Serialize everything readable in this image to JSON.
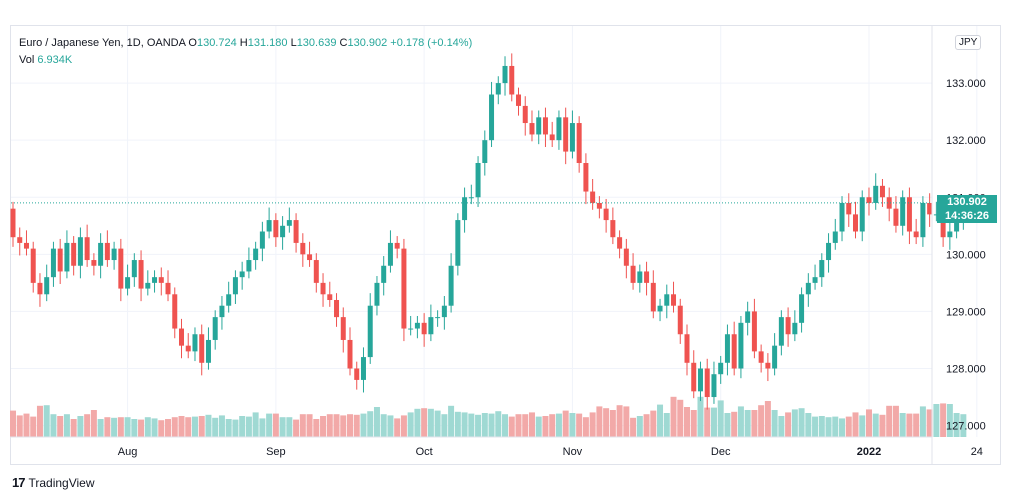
{
  "legend": {
    "symbol": "Euro / Japanese Yen, 1D, OANDA",
    "o_label": "O",
    "o_value": "130.724",
    "h_label": "H",
    "h_value": "131.180",
    "l_label": "L",
    "l_value": "130.639",
    "c_label": "C",
    "c_value": "130.902",
    "change": "+0.178 (+0.14%)",
    "vol_label": "Vol",
    "vol_value": "6.934K"
  },
  "currency_badge": "JPY",
  "last_price": {
    "price": "130.902",
    "countdown": "14:36:26"
  },
  "footer": {
    "logo": "17",
    "brand": "TradingView"
  },
  "colors": {
    "up": "#26a69a",
    "down": "#ef5350",
    "up_vol": "#9fd9d3",
    "down_vol": "#f2a9a8"
  },
  "chart_data": {
    "type": "candlestick",
    "y_ticks": [
      "133.000",
      "132.000",
      "131.000",
      "130.000",
      "129.000",
      "128.000",
      "127.000"
    ],
    "y_tick_values": [
      133,
      132,
      131,
      130,
      129,
      128,
      127
    ],
    "ylim": [
      126.8,
      134.0
    ],
    "x_labels": [
      {
        "label": "Aug",
        "index": 17
      },
      {
        "label": "Sep",
        "index": 39
      },
      {
        "label": "Oct",
        "index": 61
      },
      {
        "label": "Nov",
        "index": 83
      },
      {
        "label": "Dec",
        "index": 105
      },
      {
        "label": "2022",
        "index": 127
      },
      {
        "label": "24",
        "index": 143
      }
    ],
    "closes": [
      130.3,
      130.2,
      130.1,
      129.5,
      129.3,
      129.6,
      130.1,
      129.7,
      130.2,
      129.8,
      130.3,
      129.9,
      129.8,
      130.2,
      129.9,
      130.1,
      129.4,
      129.6,
      129.9,
      129.4,
      129.5,
      129.6,
      129.5,
      129.3,
      128.7,
      128.4,
      128.3,
      128.6,
      128.1,
      128.5,
      128.9,
      129.1,
      129.3,
      129.6,
      129.7,
      129.9,
      130.1,
      130.4,
      130.6,
      130.3,
      130.5,
      130.6,
      130.2,
      130.0,
      129.9,
      129.5,
      129.3,
      129.2,
      128.9,
      128.5,
      128.0,
      127.8,
      128.2,
      129.1,
      129.5,
      129.8,
      130.2,
      130.1,
      128.7,
      128.7,
      128.8,
      128.6,
      128.9,
      128.9,
      129.1,
      129.8,
      130.6,
      131.0,
      131.0,
      131.6,
      132.0,
      132.8,
      133.0,
      133.3,
      132.8,
      132.6,
      132.3,
      132.1,
      132.4,
      132.1,
      132.0,
      132.4,
      131.8,
      132.3,
      131.6,
      131.1,
      130.9,
      130.8,
      130.6,
      130.3,
      130.1,
      129.8,
      129.5,
      129.7,
      129.5,
      129.0,
      129.1,
      129.3,
      129.1,
      128.6,
      128.1,
      127.6,
      128.0,
      127.5,
      127.9,
      128.1,
      128.6,
      128.0,
      128.8,
      129.0,
      128.3,
      128.1,
      128.0,
      128.4,
      128.9,
      128.6,
      128.8,
      129.3,
      129.5,
      129.6,
      129.9,
      130.2,
      130.4,
      130.9,
      130.7,
      130.4,
      131.0,
      130.9,
      131.2,
      131.0,
      130.8,
      130.5,
      131.0,
      130.4,
      130.3,
      130.9,
      130.7,
      130.7,
      130.3,
      130.4,
      130.6,
      130.9
    ],
    "volumes": [
      0.44,
      0.36,
      0.39,
      0.34,
      0.52,
      0.53,
      0.38,
      0.35,
      0.38,
      0.3,
      0.35,
      0.38,
      0.45,
      0.3,
      0.33,
      0.32,
      0.33,
      0.33,
      0.3,
      0.29,
      0.33,
      0.31,
      0.28,
      0.3,
      0.33,
      0.35,
      0.33,
      0.34,
      0.35,
      0.37,
      0.32,
      0.36,
      0.3,
      0.29,
      0.35,
      0.34,
      0.41,
      0.31,
      0.39,
      0.39,
      0.33,
      0.33,
      0.29,
      0.38,
      0.38,
      0.3,
      0.35,
      0.38,
      0.38,
      0.36,
      0.38,
      0.37,
      0.39,
      0.43,
      0.5,
      0.38,
      0.36,
      0.31,
      0.36,
      0.41,
      0.47,
      0.48,
      0.47,
      0.44,
      0.38,
      0.52,
      0.42,
      0.41,
      0.39,
      0.37,
      0.4,
      0.39,
      0.43,
      0.38,
      0.34,
      0.38,
      0.38,
      0.41,
      0.34,
      0.35,
      0.38,
      0.39,
      0.44,
      0.4,
      0.39,
      0.33,
      0.41,
      0.51,
      0.48,
      0.45,
      0.53,
      0.51,
      0.32,
      0.35,
      0.38,
      0.44,
      0.54,
      0.4,
      0.67,
      0.62,
      0.5,
      0.45,
      0.67,
      0.49,
      0.49,
      0.61,
      0.4,
      0.42,
      0.51,
      0.45,
      0.45,
      0.53,
      0.6,
      0.45,
      0.35,
      0.41,
      0.46,
      0.48,
      0.4,
      0.34,
      0.35,
      0.33,
      0.34,
      0.31,
      0.34,
      0.41,
      0.36,
      0.46,
      0.39,
      0.37,
      0.52,
      0.52,
      0.4,
      0.39,
      0.39,
      0.51,
      0.46,
      0.55,
      0.56,
      0.55,
      0.4,
      0.38,
      0.35,
      0.45
    ]
  }
}
